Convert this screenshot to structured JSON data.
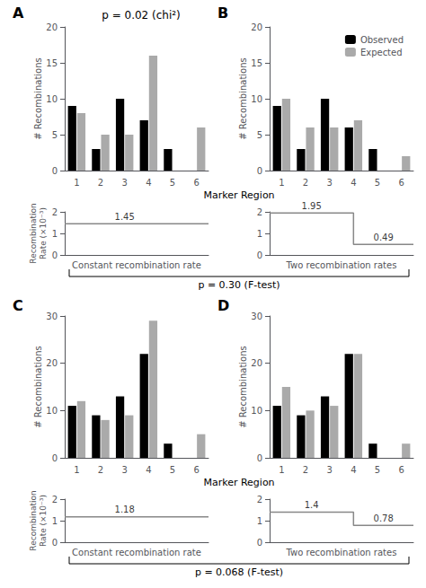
{
  "chart_data": [
    {
      "type": "bar",
      "label": "A",
      "title": "p = 0.02 (chi²)",
      "categories": [
        "1",
        "2",
        "3",
        "4",
        "5",
        "6"
      ],
      "series": [
        {
          "name": "Observed",
          "color": "#000000",
          "values": [
            9,
            3,
            10,
            7,
            3,
            0
          ]
        },
        {
          "name": "Expected",
          "color": "#aaaaaa",
          "values": [
            8,
            5,
            5,
            16,
            0,
            6
          ]
        }
      ],
      "ylabel": "# Recombinations",
      "ylim": [
        0,
        20
      ],
      "yticks": [
        0,
        5,
        10,
        15,
        20
      ],
      "grid": false
    },
    {
      "type": "bar",
      "label": "B",
      "categories": [
        "1",
        "2",
        "3",
        "4",
        "5",
        "6"
      ],
      "series": [
        {
          "name": "Observed",
          "color": "#000000",
          "values": [
            9,
            3,
            10,
            6,
            3,
            0
          ]
        },
        {
          "name": "Expected",
          "color": "#aaaaaa",
          "values": [
            10,
            6,
            6,
            7,
            0,
            2
          ]
        }
      ],
      "ylabel": "# Recombinations",
      "ylim": [
        0,
        20
      ],
      "yticks": [
        0,
        5,
        10,
        15,
        20
      ],
      "grid": false,
      "legend": "upper right"
    },
    {
      "type": "line",
      "x": [
        0,
        6
      ],
      "values": [
        1.45,
        1.45
      ],
      "color": "#888888",
      "xlabel": "Constant recombination rate",
      "ylabel": "Recombination\nRate (×10⁻³)",
      "xlim": [
        0,
        6
      ],
      "ylim": [
        0,
        2
      ],
      "yticks": [
        0,
        1,
        2
      ],
      "tick_labels": "y",
      "grid": false,
      "annotations": [
        {
          "text": "1.45",
          "x": 2.5,
          "y": 1.45
        }
      ]
    },
    {
      "type": "line",
      "x": [
        0,
        3.5,
        3.5,
        6
      ],
      "values": [
        1.95,
        1.95,
        0.49,
        0.49
      ],
      "color": "#888888",
      "xlabel": "Two recombination rates",
      "xlim": [
        0,
        6
      ],
      "ylim": [
        0,
        2
      ],
      "yticks": [
        0,
        1,
        2
      ],
      "tick_labels": "y",
      "grid": false,
      "annotations": [
        {
          "text": "1.95",
          "x": 1.75,
          "y": 1.95
        },
        {
          "text": "0.49",
          "x": 4.75,
          "y": 0.49
        }
      ]
    },
    {
      "type": "bar",
      "label": "C",
      "categories": [
        "1",
        "2",
        "3",
        "4",
        "5",
        "6"
      ],
      "series": [
        {
          "name": "Observed",
          "color": "#000000",
          "values": [
            11,
            9,
            13,
            22,
            3,
            0
          ]
        },
        {
          "name": "Expected",
          "color": "#aaaaaa",
          "values": [
            12,
            8,
            9,
            29,
            0,
            5
          ]
        }
      ],
      "ylabel": "# Recombinations",
      "ylim": [
        0,
        30
      ],
      "yticks": [
        0,
        10,
        20,
        30
      ],
      "grid": false
    },
    {
      "type": "bar",
      "label": "D",
      "categories": [
        "1",
        "2",
        "3",
        "4",
        "5",
        "6"
      ],
      "series": [
        {
          "name": "Observed",
          "color": "#000000",
          "values": [
            11,
            9,
            13,
            22,
            3,
            0
          ]
        },
        {
          "name": "Expected",
          "color": "#aaaaaa",
          "values": [
            15,
            10,
            11,
            22,
            0,
            3
          ]
        }
      ],
      "ylabel": "# Recombinations",
      "ylim": [
        0,
        30
      ],
      "yticks": [
        0,
        10,
        20,
        30
      ],
      "grid": false
    },
    {
      "type": "line",
      "x": [
        0,
        6
      ],
      "values": [
        1.18,
        1.18
      ],
      "color": "#888888",
      "xlabel": "Constant recombination rate",
      "ylabel": "Recombination\nRate (×10⁻³)",
      "xlim": [
        0,
        6
      ],
      "ylim": [
        0,
        2
      ],
      "yticks": [
        0,
        1,
        2
      ],
      "tick_labels": "y",
      "grid": false,
      "annotations": [
        {
          "text": "1.18",
          "x": 2.5,
          "y": 1.18
        }
      ]
    },
    {
      "type": "line",
      "x": [
        0,
        3.5,
        3.5,
        6
      ],
      "values": [
        1.4,
        1.4,
        0.78,
        0.78
      ],
      "color": "#888888",
      "xlabel": "Two recombination rates",
      "xlim": [
        0,
        6
      ],
      "ylim": [
        0,
        2
      ],
      "yticks": [
        0,
        1,
        2
      ],
      "tick_labels": "y",
      "grid": false,
      "annotations": [
        {
          "text": "1.4",
          "x": 1.75,
          "y": 1.4
        },
        {
          "text": "0.78",
          "x": 4.75,
          "y": 0.78
        }
      ]
    }
  ],
  "annotations": [
    {
      "text": "Marker Region"
    },
    {
      "text": "p = 0.30 (F-test)"
    },
    {
      "text": "Marker Region"
    },
    {
      "text": "p = 0.068 (F-test)"
    }
  ]
}
